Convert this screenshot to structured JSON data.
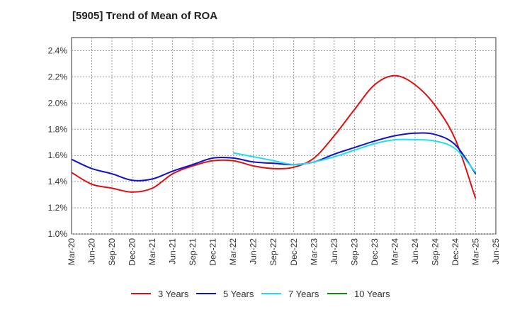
{
  "chart_data": {
    "type": "line",
    "title": "[5905]  Trend of Mean of ROA",
    "xlabel": "",
    "ylabel": "",
    "x": [
      "Mar-20",
      "Jun-20",
      "Sep-20",
      "Dec-20",
      "Mar-21",
      "Jun-21",
      "Sep-21",
      "Dec-21",
      "Mar-22",
      "Jun-22",
      "Sep-22",
      "Dec-22",
      "Mar-23",
      "Jun-23",
      "Sep-23",
      "Dec-23",
      "Mar-24",
      "Jun-24",
      "Sep-24",
      "Dec-24",
      "Mar-25",
      "Jun-25"
    ],
    "ylim": [
      1.0,
      2.5
    ],
    "yticks": [
      "1.0%",
      "1.2%",
      "1.4%",
      "1.6%",
      "1.8%",
      "2.0%",
      "2.2%",
      "2.4%"
    ],
    "ytick_values": [
      1.0,
      1.2,
      1.4,
      1.6,
      1.8,
      2.0,
      2.2,
      2.4
    ],
    "grid": true,
    "legend_position": "bottom",
    "series": [
      {
        "name": "3 Years",
        "color": "#dd1111",
        "values": [
          1.47,
          1.38,
          1.35,
          1.32,
          1.35,
          1.46,
          1.52,
          1.56,
          1.56,
          1.52,
          1.5,
          1.51,
          1.58,
          1.75,
          1.95,
          2.14,
          2.21,
          2.14,
          1.98,
          1.72,
          1.27,
          null
        ]
      },
      {
        "name": "5 Years",
        "color": "#1111cc",
        "values": [
          1.57,
          1.5,
          1.46,
          1.41,
          1.42,
          1.48,
          1.53,
          1.58,
          1.58,
          1.55,
          1.54,
          1.53,
          1.55,
          1.61,
          1.66,
          1.71,
          1.75,
          1.77,
          1.76,
          1.68,
          1.46,
          null
        ]
      },
      {
        "name": "7 Years",
        "color": "#22ddee",
        "values": [
          null,
          null,
          null,
          null,
          null,
          null,
          null,
          null,
          1.62,
          1.59,
          1.56,
          1.53,
          1.55,
          1.59,
          1.64,
          1.69,
          1.72,
          1.72,
          1.71,
          1.65,
          1.47,
          null
        ]
      },
      {
        "name": "10 Years",
        "color": "#118811",
        "values": [
          null,
          null,
          null,
          null,
          null,
          null,
          null,
          null,
          null,
          null,
          null,
          null,
          null,
          null,
          null,
          null,
          null,
          null,
          null,
          null,
          null,
          null
        ]
      }
    ]
  }
}
